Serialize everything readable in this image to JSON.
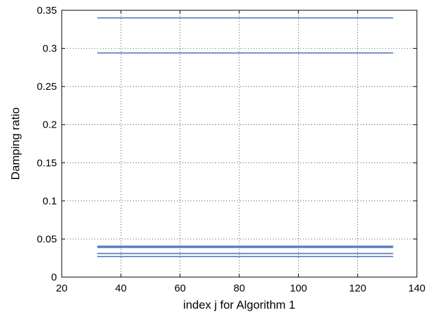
{
  "chart_data": {
    "type": "line",
    "title": "",
    "xlabel": "index j for Algorithm 1",
    "ylabel": "Damping ratio",
    "xlim": [
      20,
      140
    ],
    "ylim": [
      0,
      0.35
    ],
    "xticks": [
      20,
      40,
      60,
      80,
      100,
      120,
      140
    ],
    "yticks": [
      0,
      0.05,
      0.1,
      0.15,
      0.2,
      0.25,
      0.3,
      0.35
    ],
    "xtick_labels": [
      "20",
      "40",
      "60",
      "80",
      "100",
      "120",
      "140"
    ],
    "ytick_labels": [
      "0",
      "0.05",
      "0.1",
      "0.15",
      "0.2",
      "0.25",
      "0.3",
      "0.35"
    ],
    "grid": true,
    "line_color": "#4a6fb5",
    "series": [
      {
        "x": [
          32,
          132
        ],
        "values": [
          0.34,
          0.34
        ]
      },
      {
        "x": [
          32,
          132
        ],
        "values": [
          0.294,
          0.294
        ]
      },
      {
        "x": [
          32,
          132
        ],
        "values": [
          0.0405,
          0.0405
        ]
      },
      {
        "x": [
          32,
          132
        ],
        "values": [
          0.039,
          0.039
        ]
      },
      {
        "x": [
          32,
          132
        ],
        "values": [
          0.031,
          0.031
        ]
      },
      {
        "x": [
          32,
          132
        ],
        "values": [
          0.027,
          0.027
        ]
      }
    ]
  }
}
